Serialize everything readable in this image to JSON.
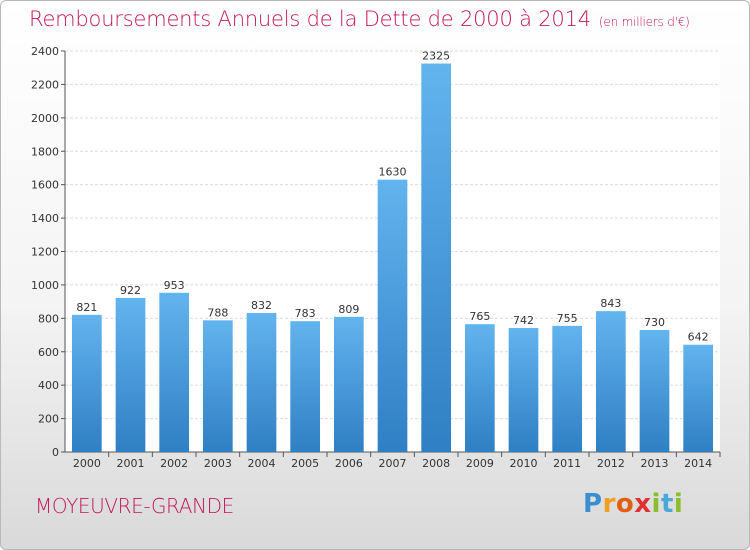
{
  "title": "Remboursements Annuels de la Dette de 2000 à 2014",
  "unit": "(en milliers d'€)",
  "city": "MOYEUVRE-GRANDE",
  "logo": "Proxiti",
  "chart_data": {
    "type": "bar",
    "title": "Remboursements Annuels de la Dette de 2000 à 2014",
    "subtitle": "(en milliers d'€)",
    "xlabel": "",
    "ylabel": "",
    "categories": [
      "2000",
      "2001",
      "2002",
      "2003",
      "2004",
      "2005",
      "2006",
      "2007",
      "2008",
      "2009",
      "2010",
      "2011",
      "2012",
      "2013",
      "2014"
    ],
    "values": [
      821,
      922,
      953,
      788,
      832,
      783,
      809,
      1630,
      2325,
      765,
      742,
      755,
      843,
      730,
      642
    ],
    "ylim": [
      0,
      2400
    ],
    "yticks": [
      0,
      200,
      400,
      600,
      800,
      1000,
      1200,
      1400,
      1600,
      1800,
      2000,
      2200,
      2400
    ],
    "grid": true,
    "legend": "none",
    "bar_color": "#3a8fd1",
    "bar_color_light": "#5fb0ea"
  }
}
